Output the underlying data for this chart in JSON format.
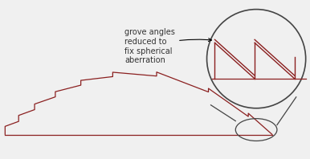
{
  "bg_color": "#f0f0f0",
  "lens_color": "#8B2020",
  "outline_color": "#444444",
  "text_color": "#333333",
  "text": "grove angles\nreduced to\nfix spherical\naberration",
  "text_fontsize": 7.0,
  "figw": 3.86,
  "figh": 1.98,
  "dpi": 100
}
